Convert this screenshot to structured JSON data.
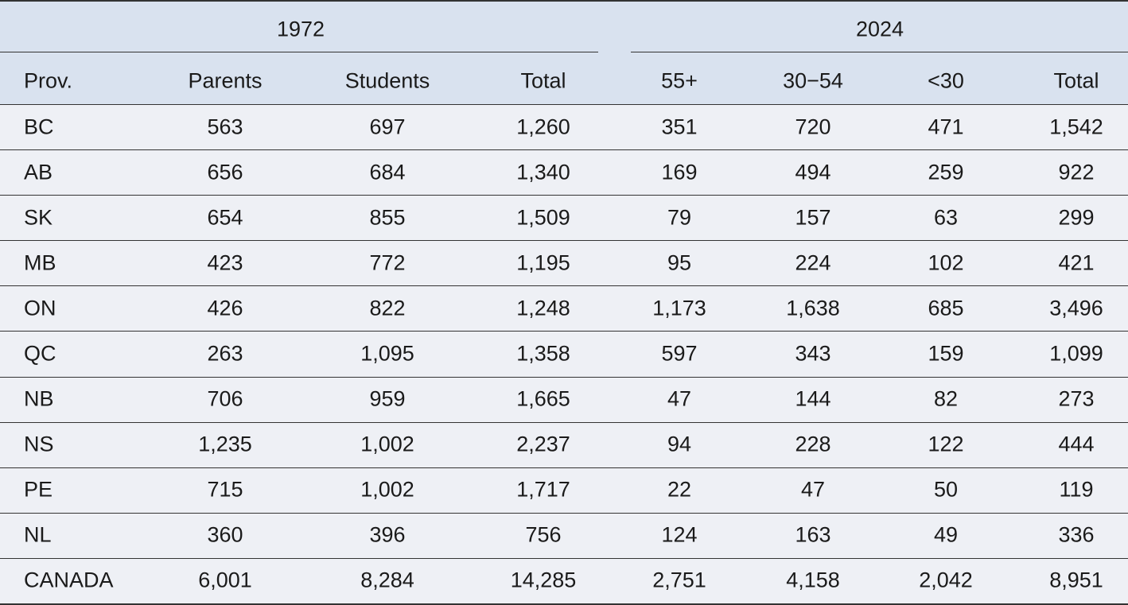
{
  "table": {
    "groups": [
      "1972",
      "2024"
    ],
    "columns": [
      "Prov.",
      "Parents",
      "Students",
      "Total",
      "55+",
      "30−54",
      "<30",
      "Total"
    ],
    "rows": [
      [
        "BC",
        "563",
        "697",
        "1,260",
        "351",
        "720",
        "471",
        "1,542"
      ],
      [
        "AB",
        "656",
        "684",
        "1,340",
        "169",
        "494",
        "259",
        "922"
      ],
      [
        "SK",
        "654",
        "855",
        "1,509",
        "79",
        "157",
        "63",
        "299"
      ],
      [
        "MB",
        "423",
        "772",
        "1,195",
        "95",
        "224",
        "102",
        "421"
      ],
      [
        "ON",
        "426",
        "822",
        "1,248",
        "1,173",
        "1,638",
        "685",
        "3,496"
      ],
      [
        "QC",
        "263",
        "1,095",
        "1,358",
        "597",
        "343",
        "159",
        "1,099"
      ],
      [
        "NB",
        "706",
        "959",
        "1,665",
        "47",
        "144",
        "82",
        "273"
      ],
      [
        "NS",
        "1,235",
        "1,002",
        "2,237",
        "94",
        "228",
        "122",
        "444"
      ],
      [
        "PE",
        "715",
        "1,002",
        "1,717",
        "22",
        "47",
        "50",
        "119"
      ],
      [
        "NL",
        "360",
        "396",
        "756",
        "124",
        "163",
        "49",
        "336"
      ],
      [
        "CANADA",
        "6,001",
        "8,284",
        "14,285",
        "2,751",
        "4,158",
        "2,042",
        "8,951"
      ]
    ]
  }
}
